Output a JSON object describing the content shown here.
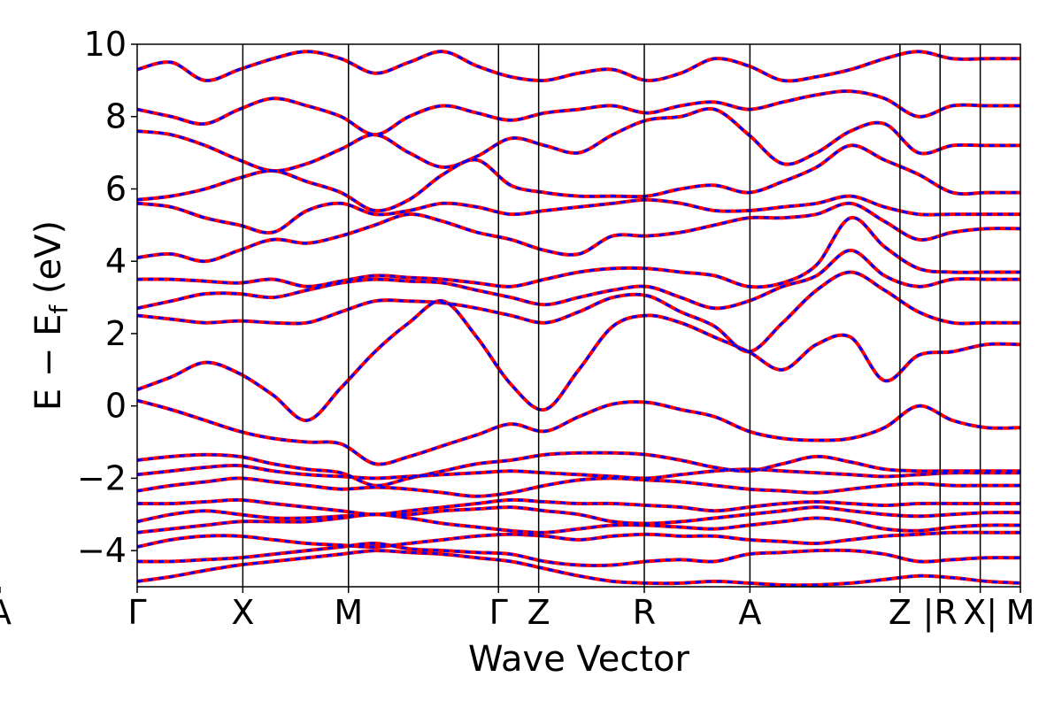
{
  "chart_data": {
    "type": "line",
    "xlabel": "Wave Vector",
    "ylabel_parts": {
      "main": "E − E",
      "sub": "f",
      "unit": " (eV)"
    },
    "ylim": [
      -5,
      10
    ],
    "yticks": [
      {
        "value": -4,
        "label": "−4"
      },
      {
        "value": -2,
        "label": "−2"
      },
      {
        "value": 0,
        "label": "0"
      },
      {
        "value": 2,
        "label": "2"
      },
      {
        "value": 4,
        "label": "4"
      },
      {
        "value": 6,
        "label": "6"
      },
      {
        "value": 8,
        "label": "8"
      },
      {
        "value": 10,
        "label": "10"
      }
    ],
    "kpath_segments": [
      0.5,
      0.5,
      0.71,
      0.19,
      0.5,
      0.5,
      0.71,
      0.19,
      0.19,
      0.19
    ],
    "kpoint_labels": [
      "Γ",
      "X",
      "M",
      "Γ",
      "Z",
      "R",
      "A",
      "Z",
      "|R",
      "X|",
      "M",
      "A"
    ],
    "colors": {
      "primary": "#ff0000",
      "secondary": "#0000ff",
      "high_symmetry_line": "#000000"
    },
    "series": [
      {
        "style": "solid",
        "color": "#ff0000",
        "bands": [
          [
            -4.85,
            -4.72,
            -4.55,
            -4.4,
            -4.3,
            -4.2,
            -4.1,
            -4.0,
            -4.05,
            -4.1,
            -4.2,
            -4.3,
            -4.5,
            -4.7,
            -4.85,
            -4.9,
            -4.9,
            -4.85,
            -4.9,
            -4.95,
            -4.95,
            -4.9,
            -4.8,
            -4.7,
            -4.75,
            -4.85,
            -4.9
          ],
          [
            -4.3,
            -4.3,
            -4.25,
            -4.2,
            -4.1,
            -4.0,
            -3.9,
            -3.8,
            -3.95,
            -4.0,
            -4.05,
            -4.1,
            -4.3,
            -4.4,
            -4.4,
            -4.3,
            -4.25,
            -4.3,
            -4.1,
            -4.05,
            -4.0,
            -4.0,
            -4.1,
            -4.3,
            -4.25,
            -4.2,
            -4.2
          ],
          [
            -3.9,
            -3.7,
            -3.6,
            -3.6,
            -3.7,
            -3.8,
            -3.85,
            -3.9,
            -3.8,
            -3.7,
            -3.6,
            -3.55,
            -3.6,
            -3.7,
            -3.6,
            -3.55,
            -3.6,
            -3.6,
            -3.7,
            -3.75,
            -3.8,
            -3.7,
            -3.6,
            -3.55,
            -3.5,
            -3.5,
            -3.5
          ],
          [
            -3.5,
            -3.4,
            -3.3,
            -3.2,
            -3.2,
            -3.2,
            -3.1,
            -3.0,
            -3.1,
            -3.25,
            -3.35,
            -3.45,
            -3.5,
            -3.4,
            -3.3,
            -3.3,
            -3.35,
            -3.4,
            -3.3,
            -3.2,
            -3.1,
            -3.2,
            -3.4,
            -3.45,
            -3.35,
            -3.3,
            -3.3
          ],
          [
            -3.2,
            -3.0,
            -2.9,
            -3.0,
            -3.1,
            -3.1,
            -3.05,
            -3.0,
            -3.0,
            -2.9,
            -2.85,
            -2.8,
            -2.9,
            -3.0,
            -3.2,
            -3.25,
            -3.2,
            -3.1,
            -3.0,
            -2.9,
            -2.8,
            -2.9,
            -3.0,
            -3.05,
            -3.0,
            -2.95,
            -2.95
          ],
          [
            -2.7,
            -2.7,
            -2.65,
            -2.6,
            -2.7,
            -2.8,
            -2.9,
            -3.0,
            -2.9,
            -2.8,
            -2.7,
            -2.6,
            -2.65,
            -2.7,
            -2.7,
            -2.75,
            -2.8,
            -2.9,
            -2.8,
            -2.7,
            -2.65,
            -2.7,
            -2.75,
            -2.7,
            -2.7,
            -2.7,
            -2.7
          ],
          [
            -2.35,
            -2.2,
            -2.1,
            -2.0,
            -2.1,
            -2.2,
            -2.3,
            -2.25,
            -2.3,
            -2.4,
            -2.5,
            -2.4,
            -2.2,
            -2.05,
            -2.0,
            -2.05,
            -2.1,
            -2.2,
            -2.3,
            -2.35,
            -2.4,
            -2.3,
            -2.2,
            -2.15,
            -2.2,
            -2.2,
            -2.2
          ],
          [
            -1.9,
            -1.8,
            -1.7,
            -1.65,
            -1.8,
            -1.9,
            -1.95,
            -2.0,
            -1.95,
            -1.9,
            -1.85,
            -1.8,
            -1.85,
            -1.9,
            -1.95,
            -2.0,
            -1.9,
            -1.8,
            -1.75,
            -1.8,
            -1.85,
            -1.9,
            -1.95,
            -1.9,
            -1.85,
            -1.85,
            -1.85
          ],
          [
            -1.5,
            -1.4,
            -1.35,
            -1.4,
            -1.6,
            -1.75,
            -1.85,
            -2.2,
            -2.0,
            -1.8,
            -1.6,
            -1.5,
            -1.35,
            -1.3,
            -1.3,
            -1.35,
            -1.5,
            -1.7,
            -1.8,
            -1.6,
            -1.4,
            -1.55,
            -1.75,
            -1.8,
            -1.8,
            -1.8,
            -1.8
          ],
          [
            0.15,
            -0.1,
            -0.4,
            -0.7,
            -0.9,
            -1.0,
            -1.05,
            -1.6,
            -1.4,
            -1.1,
            -0.8,
            -0.5,
            -0.7,
            -0.3,
            0.05,
            0.1,
            -0.1,
            -0.3,
            -0.7,
            -0.9,
            -0.95,
            -0.9,
            -0.6,
            0.0,
            -0.4,
            -0.6,
            -0.6
          ],
          [
            0.45,
            0.8,
            1.2,
            0.9,
            0.3,
            -0.4,
            0.5,
            1.5,
            2.3,
            2.9,
            1.9,
            0.6,
            -0.1,
            1.0,
            2.2,
            2.5,
            2.3,
            1.9,
            1.5,
            1.0,
            1.7,
            1.9,
            0.7,
            1.4,
            1.5,
            1.7,
            1.7
          ],
          [
            2.5,
            2.4,
            2.3,
            2.35,
            2.3,
            2.3,
            2.6,
            2.9,
            2.9,
            2.85,
            2.7,
            2.5,
            2.3,
            2.6,
            3.0,
            3.05,
            2.6,
            2.2,
            1.5,
            2.3,
            3.2,
            3.7,
            3.2,
            2.6,
            2.3,
            2.3,
            2.3
          ],
          [
            2.7,
            2.9,
            3.1,
            3.1,
            3.0,
            3.2,
            3.4,
            3.5,
            3.45,
            3.4,
            3.2,
            3.0,
            2.8,
            3.0,
            3.2,
            3.3,
            3.0,
            2.7,
            2.9,
            3.3,
            3.6,
            4.3,
            3.6,
            3.3,
            3.5,
            3.5,
            3.5
          ],
          [
            3.5,
            3.5,
            3.45,
            3.4,
            3.5,
            3.3,
            3.45,
            3.6,
            3.55,
            3.5,
            3.4,
            3.3,
            3.5,
            3.7,
            3.8,
            3.8,
            3.7,
            3.6,
            3.3,
            3.4,
            3.9,
            5.2,
            4.4,
            3.8,
            3.7,
            3.7,
            3.7
          ],
          [
            4.1,
            4.2,
            4.0,
            4.3,
            4.6,
            4.5,
            4.7,
            5.0,
            5.3,
            5.1,
            4.8,
            4.6,
            4.3,
            4.2,
            4.7,
            4.7,
            4.8,
            5.0,
            5.2,
            5.2,
            5.3,
            5.6,
            5.1,
            4.6,
            4.8,
            4.9,
            4.9
          ],
          [
            5.6,
            5.5,
            5.2,
            5.0,
            4.8,
            5.4,
            5.6,
            5.3,
            5.4,
            5.6,
            5.5,
            5.3,
            5.4,
            5.5,
            5.6,
            5.7,
            5.6,
            5.4,
            5.4,
            5.5,
            5.6,
            5.8,
            5.5,
            5.3,
            5.3,
            5.3,
            5.3
          ],
          [
            5.7,
            5.8,
            6.0,
            6.3,
            6.5,
            6.2,
            5.9,
            5.4,
            5.7,
            6.4,
            6.8,
            6.1,
            5.9,
            5.8,
            5.8,
            5.8,
            6.0,
            6.1,
            5.9,
            6.2,
            6.6,
            7.2,
            6.8,
            6.4,
            5.9,
            5.9,
            5.9
          ],
          [
            7.6,
            7.5,
            7.2,
            6.8,
            6.5,
            6.7,
            7.1,
            7.5,
            7.0,
            6.6,
            6.9,
            7.4,
            7.2,
            7.0,
            7.5,
            7.9,
            8.0,
            8.2,
            7.5,
            6.7,
            7.0,
            7.6,
            7.8,
            7.0,
            7.2,
            7.2,
            7.2
          ],
          [
            8.2,
            8.0,
            7.8,
            8.2,
            8.5,
            8.3,
            8.0,
            7.5,
            8.0,
            8.3,
            8.1,
            7.9,
            8.1,
            8.2,
            8.3,
            8.1,
            8.3,
            8.4,
            8.2,
            8.4,
            8.6,
            8.7,
            8.5,
            8.0,
            8.3,
            8.3,
            8.3
          ],
          [
            9.3,
            9.5,
            9.0,
            9.3,
            9.6,
            9.8,
            9.6,
            9.2,
            9.5,
            9.8,
            9.4,
            9.1,
            9.0,
            9.2,
            9.3,
            9.0,
            9.2,
            9.6,
            9.4,
            9.0,
            9.1,
            9.3,
            9.6,
            9.8,
            9.6,
            9.6,
            9.6
          ]
        ]
      },
      {
        "style": "dashed",
        "color": "#0000ff",
        "bands": "same"
      }
    ]
  }
}
